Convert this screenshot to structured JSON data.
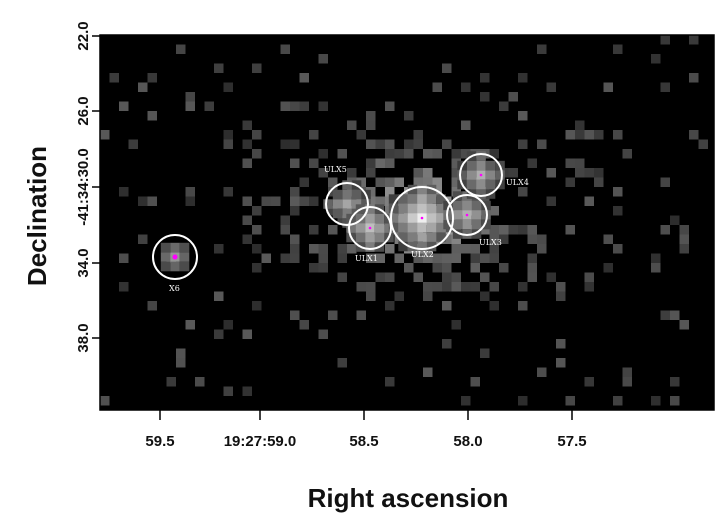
{
  "image": {
    "xlabel": "Right ascension",
    "ylabel": "Declination",
    "xticks": [
      "59.5",
      "19:27:59.0",
      "58.5",
      "58.0",
      "57.5"
    ],
    "yticks": [
      "22.0",
      "26.0",
      "-41:34:30.0",
      "34.0",
      "38.0"
    ],
    "colors": {
      "background": "#000000",
      "region_circle": "#ffffff",
      "source_marker": "#ff00ff",
      "frame": "#000000"
    },
    "sources": [
      {
        "name": "X6"
      },
      {
        "name": "ULX5"
      },
      {
        "name": "ULX1"
      },
      {
        "name": "ULX2"
      },
      {
        "name": "ULX3"
      },
      {
        "name": "ULX4"
      }
    ]
  }
}
